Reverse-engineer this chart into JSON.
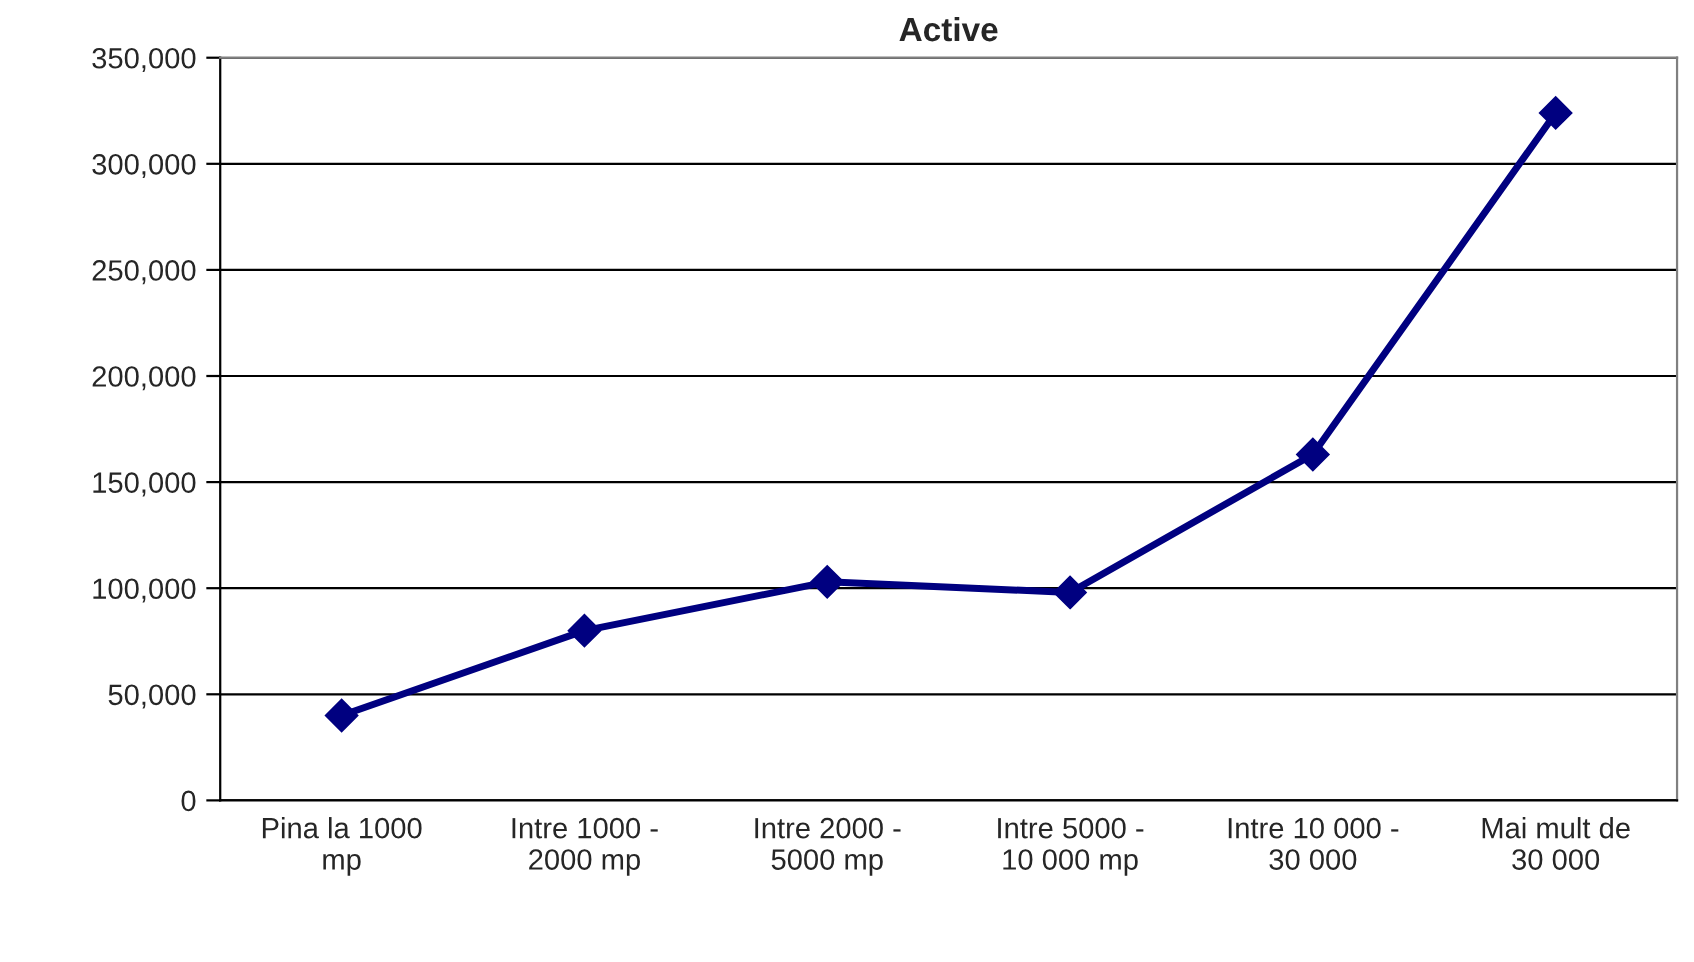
{
  "chart_data": {
    "type": "line",
    "title": "Active",
    "categories": [
      "Pina la 1000 mp",
      "Intre 1000 - 2000 mp",
      "Intre 2000 - 5000 mp",
      "Intre 5000 - 10 000 mp",
      "Intre 10 000 - 30 000",
      "Mai mult de 30 000"
    ],
    "series": [
      {
        "color": "#000080",
        "values": [
          40000,
          80000,
          103000,
          98000,
          163000,
          324000
        ]
      }
    ],
    "ylim": [
      0,
      350000
    ],
    "yticks": [
      {
        "value": 0,
        "label": "0"
      },
      {
        "value": 50000,
        "label": "50,000"
      },
      {
        "value": 100000,
        "label": "100,000"
      },
      {
        "value": 150000,
        "label": "150,000"
      },
      {
        "value": 200000,
        "label": "200,000"
      },
      {
        "value": 250000,
        "label": "250,000"
      },
      {
        "value": 300000,
        "label": "300,000"
      },
      {
        "value": 350000,
        "label": "350,000"
      }
    ],
    "grid": "y",
    "marker": "diamond",
    "line_style": "solid"
  }
}
